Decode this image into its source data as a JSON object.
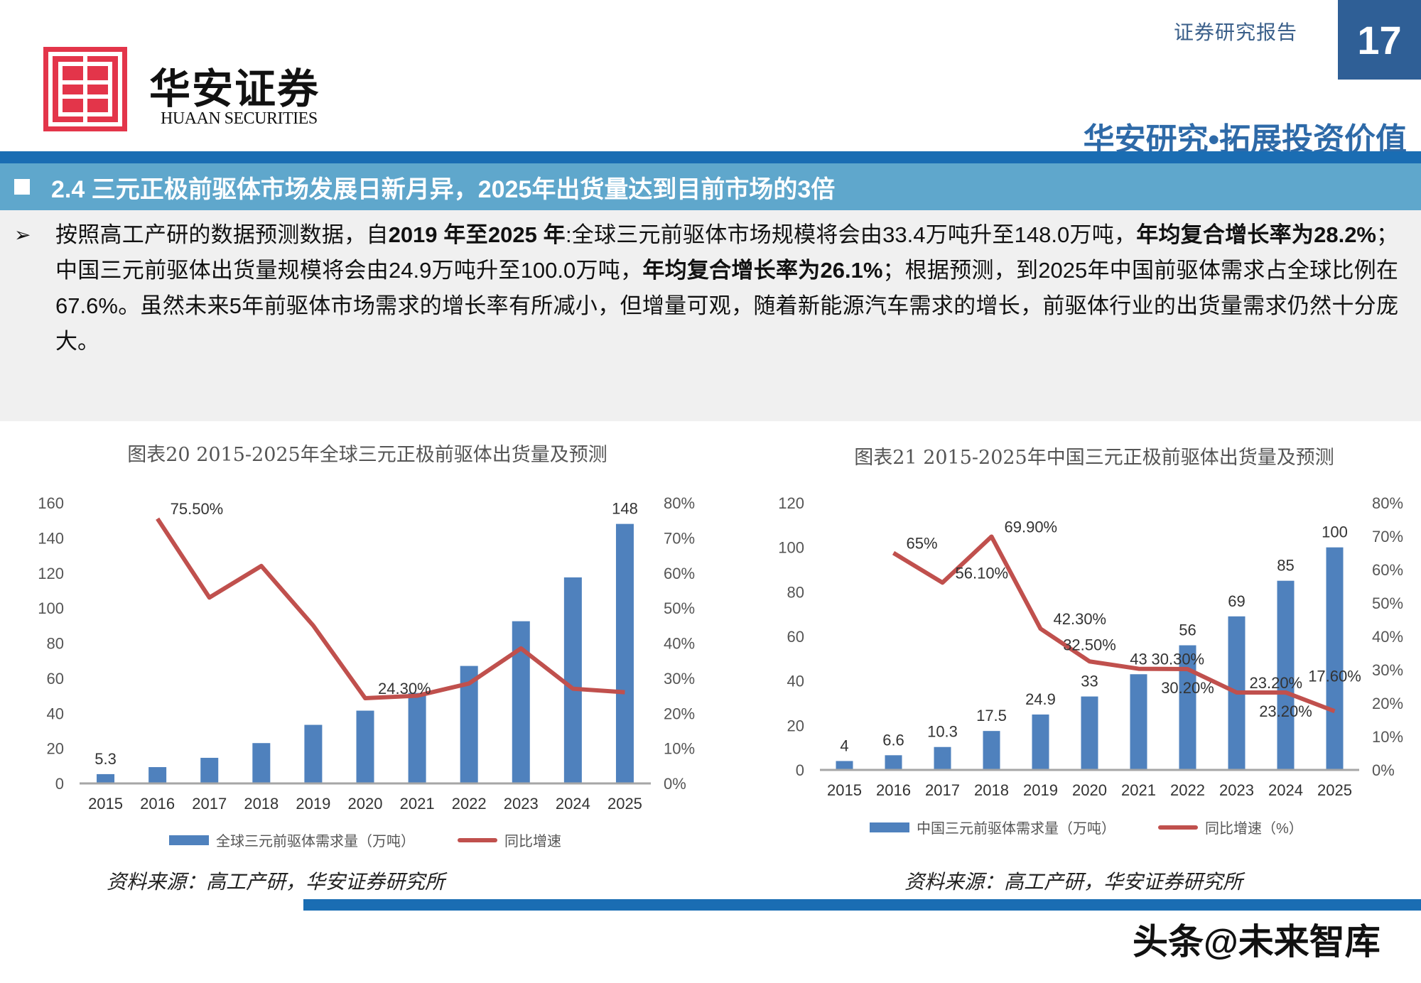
{
  "header": {
    "report_type": "证券研究报告",
    "page_number": "17",
    "logo_name": "华安证券",
    "logo_en": "HUAAN SECURITIES",
    "slogan": "华安研究•拓展投资价值"
  },
  "section": {
    "title": "2.4 三元正极前驱体市场发展日新月异，2025年出货量达到目前市场的3倍"
  },
  "body": {
    "segments": [
      {
        "text": "按照高工产研的数据预测数据，自"
      },
      {
        "text": "2019 年至2025 年"
      },
      {
        "text": ":全球三元前驱体市场规模将会由33.4万吨升至148.0万吨，"
      },
      {
        "text": "年均复合增长率为28.2%"
      },
      {
        "text": "；中国三元前驱体出货量规模将会由24.9万吨升至100.0万吨，"
      },
      {
        "text": "年均复合增长率为26.1%"
      },
      {
        "text": "；根据预测，到2025年中国前驱体需求占全球比例在67.6%。虽然未来5年前驱体市场需求的增长率有所减小，但增量可观，随着新能源汽车需求的增长，前驱体行业的出货量需求仍然十分庞大。"
      }
    ]
  },
  "colors": {
    "bar": "#4f81bd",
    "line": "#c0504d",
    "brand_blue": "#1a6db3",
    "brand_red": "#e3354a"
  },
  "chart_data": [
    {
      "type": "bar+line",
      "title": "图表20 2015-2025年全球三元正极前驱体出货量及预测",
      "categories": [
        "2015",
        "2016",
        "2017",
        "2018",
        "2019",
        "2020",
        "2021",
        "2022",
        "2023",
        "2024",
        "2025"
      ],
      "series": [
        {
          "name": "全球三元前驱体需求量（万吨）",
          "type": "bar",
          "axis": "left",
          "values": [
            5.3,
            9.3,
            14.6,
            23,
            33.4,
            41.5,
            51.6,
            67,
            92.5,
            117.5,
            148
          ],
          "labels": [
            "5.3",
            null,
            null,
            null,
            null,
            null,
            null,
            null,
            null,
            null,
            "148"
          ]
        },
        {
          "name": "同比增速",
          "type": "line",
          "axis": "right",
          "values": [
            null,
            75.5,
            53,
            62,
            45,
            24.3,
            25,
            28.5,
            38.5,
            27,
            26
          ],
          "labels": [
            null,
            "75.50%",
            null,
            null,
            null,
            "24.30%",
            null,
            null,
            null,
            null,
            null
          ]
        }
      ],
      "y_left": {
        "min": 0,
        "max": 160,
        "ticks": [
          "0",
          "20",
          "40",
          "60",
          "80",
          "100",
          "120",
          "140",
          "160"
        ]
      },
      "y_right": {
        "min": 0,
        "max": 80,
        "ticks": [
          "0%",
          "10%",
          "20%",
          "30%",
          "40%",
          "50%",
          "60%",
          "70%",
          "80%"
        ]
      },
      "grid": false,
      "legend": "bottom",
      "source": "资料来源：高工产研，华安证券研究所"
    },
    {
      "type": "bar+line",
      "title": "图表21 2015-2025年中国三元正极前驱体出货量及预测",
      "categories": [
        "2015",
        "2016",
        "2017",
        "2018",
        "2019",
        "2020",
        "2021",
        "2022",
        "2023",
        "2024",
        "2025"
      ],
      "series": [
        {
          "name": "中国三元前驱体需求量（万吨）",
          "type": "bar",
          "axis": "left",
          "values": [
            4,
            6.6,
            10.3,
            17.5,
            24.9,
            33,
            43,
            56,
            69,
            85,
            100
          ],
          "labels": [
            "4",
            "6.6",
            "10.3",
            "17.5",
            "24.9",
            "33",
            "43",
            "56",
            "69",
            "85",
            "100"
          ]
        },
        {
          "name": "同比增速（%）",
          "type": "line",
          "axis": "right",
          "values": [
            null,
            65,
            56.1,
            69.9,
            42.3,
            32.5,
            30.3,
            30.2,
            23.2,
            23.2,
            17.6
          ],
          "labels": [
            null,
            "65%",
            "56.10%",
            "69.90%",
            "42.30%",
            "32.50%",
            "30.30%",
            "30.20%",
            "23.20%",
            "23.20%",
            "17.60%"
          ]
        }
      ],
      "y_left": {
        "min": 0,
        "max": 120,
        "ticks": [
          "0",
          "20",
          "40",
          "60",
          "80",
          "100",
          "120"
        ]
      },
      "y_right": {
        "min": 0,
        "max": 80,
        "ticks": [
          "0%",
          "10%",
          "20%",
          "30%",
          "40%",
          "50%",
          "60%",
          "70%",
          "80%"
        ]
      },
      "grid": false,
      "legend": "bottom",
      "source": "资料来源：高工产研，华安证券研究所"
    }
  ],
  "watermark": "头条@未来智库"
}
